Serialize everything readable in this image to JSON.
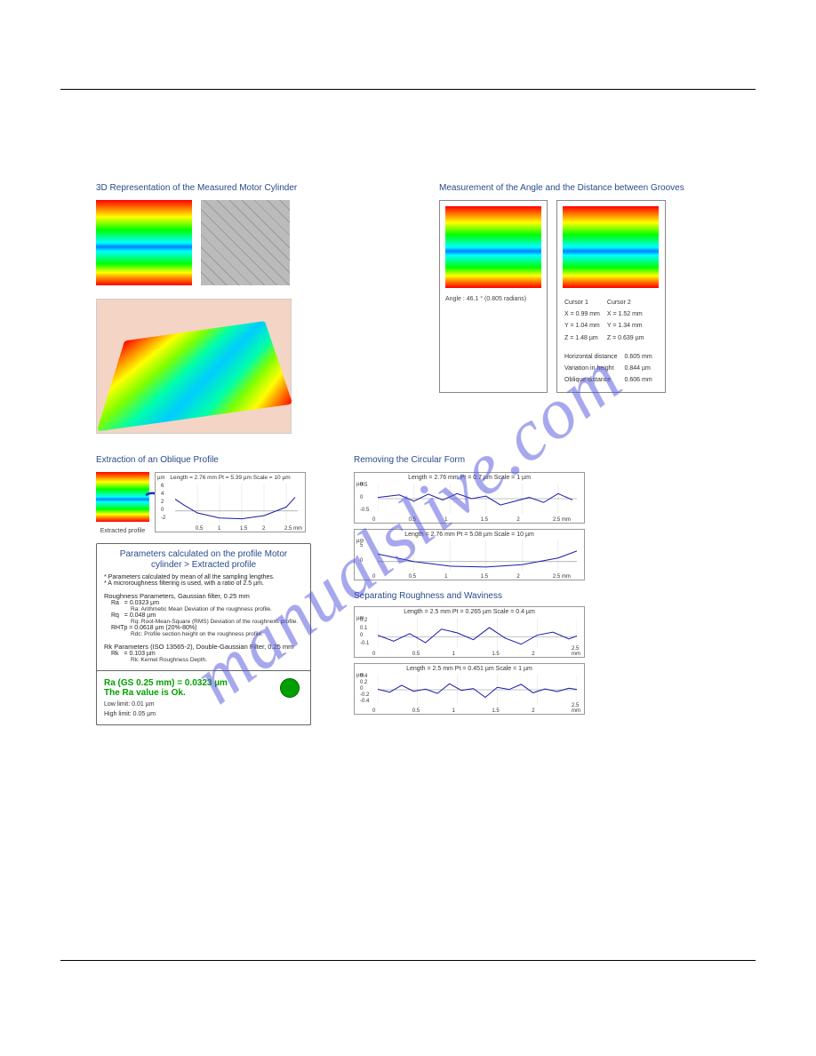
{
  "watermark": "manualslive.com",
  "sections": {
    "s3d_title": "3D Representation of the Measured Motor Cylinder",
    "groove_title": "Measurement of the Angle and the Distance between Grooves",
    "extract_title": "Extraction of an Oblique Profile",
    "remove_title": "Removing the Circular Form",
    "separate_title": "Separating Roughness and Waviness"
  },
  "groove": {
    "angle_caption": "Angle : 46.1 ° (0.805 radians)",
    "c1_label": "Cursor 1",
    "c2_label": "Cursor 2",
    "c1_x": "X = 0.99 mm",
    "c2_x": "X = 1.52 mm",
    "c1_y": "Y = 1.04 mm",
    "c2_y": "Y = 1.34 mm",
    "c1_z": "Z = 1.48 µm",
    "c2_z": "Z = 0.639 µm",
    "hd_label": "Horizontal distance",
    "hd_val": "0.605 mm",
    "vh_label": "Variation in height",
    "vh_val": "0.844 µm",
    "od_label": "Oblique distance",
    "od_val": "0.606 mm"
  },
  "profile": {
    "extract_label": "Extracted profile",
    "chart_title": "Length = 2.76 mm  Pt = 5.39 µm  Scale = 10 µm",
    "y_unit": "µm",
    "x_unit": "mm",
    "yticks": [
      "6",
      "4",
      "2",
      "0",
      "-2"
    ],
    "xticks": [
      "0.5",
      "1",
      "1.5",
      "2",
      "2.5 mm"
    ],
    "curve": [
      [
        0,
        3
      ],
      [
        0.2,
        1.5
      ],
      [
        0.5,
        -0.5
      ],
      [
        1,
        -1.8
      ],
      [
        1.5,
        -2
      ],
      [
        2,
        -1.2
      ],
      [
        2.5,
        1
      ],
      [
        2.7,
        3.5
      ]
    ],
    "ylim": [
      -3,
      7
    ],
    "xlim": [
      0,
      2.76
    ],
    "line_color": "#1a1aaa"
  },
  "params": {
    "box_title": "Parameters calculated on the profile Motor cylinder > Extracted profile",
    "note1": "* Parameters calculated by mean of all the sampling lengthes.",
    "note2": "* A microroughness filtering is used, with a ratio of 2.5 µm.",
    "sect1": "Roughness Parameters, Gaussian filter, 0.25 mm",
    "ra_lab": "Ra",
    "ra_val": "= 0.0323 µm",
    "ra_def": "Ra: Arithmetic Mean Deviation of the roughness profile.",
    "rq_lab": "Rq",
    "rq_val": "= 0.048 µm",
    "rq_def": "Rq: Root-Mean-Square (RMS) Deviation of the roughness profile.",
    "rhtp_lab": "RHTp",
    "rhtp_val": "= 0.0618 µm    (20%-80%)",
    "rdc_def": "Rdc: Profile section height on the roughness profile.",
    "sect2": "Rk Parameters (ISO 13565-2), Double-Gaussian Filter, 0.25 mm",
    "rk_lab": "Rk",
    "rk_val": "= 0.103 µm",
    "rk_def": "Rk: Kernel Roughness Depth.",
    "result_line1": "Ra (GS 0.25 mm) = 0.0323 µm",
    "result_line2": "The Ra value is Ok.",
    "low_limit": "Low limit: 0.01 µm",
    "high_limit": "High limit: 0.05 µm"
  },
  "remove_charts": [
    {
      "title": "Length = 2.76 mm  Pt = 0.7 µm  Scale = 1 µm",
      "ylim": [
        -0.6,
        0.6
      ],
      "yticks": [
        "0.5",
        "0",
        "-0.5"
      ],
      "xlim": [
        0,
        2.76
      ],
      "xticks": [
        "0",
        "0.5",
        "1",
        "1.5",
        "2",
        "2.5 mm"
      ],
      "line_color": "#1a1aaa",
      "curve": [
        [
          0,
          0.05
        ],
        [
          0.3,
          0.15
        ],
        [
          0.5,
          -0.1
        ],
        [
          0.7,
          0.18
        ],
        [
          0.9,
          -0.05
        ],
        [
          1.1,
          0.2
        ],
        [
          1.3,
          0
        ],
        [
          1.5,
          0.1
        ],
        [
          1.7,
          -0.25
        ],
        [
          1.9,
          -0.1
        ],
        [
          2.1,
          0.05
        ],
        [
          2.3,
          -0.15
        ],
        [
          2.5,
          0.2
        ],
        [
          2.7,
          -0.05
        ]
      ]
    },
    {
      "title": "Length = 2.76 mm  Pt = 5.08 µm  Scale = 10 µm",
      "ylim": [
        -3,
        7
      ],
      "yticks": [
        "5",
        "0"
      ],
      "xlim": [
        0,
        2.76
      ],
      "xticks": [
        "0",
        "0.5",
        "1",
        "1.5",
        "2",
        "2.5 mm"
      ],
      "line_color": "#1a1aaa",
      "curve": [
        [
          0,
          2.5
        ],
        [
          0.5,
          0
        ],
        [
          1,
          -1.5
        ],
        [
          1.5,
          -1.8
        ],
        [
          2,
          -1
        ],
        [
          2.5,
          1.2
        ],
        [
          2.76,
          3.5
        ]
      ]
    }
  ],
  "separate_charts": [
    {
      "title": "Length = 2.5 mm  Pt = 0.265 µm  Scale = 0.4 µm",
      "ylim": [
        -0.15,
        0.25
      ],
      "yticks": [
        "0.2",
        "0.1",
        "0",
        "-0.1"
      ],
      "xlim": [
        0,
        2.5
      ],
      "xticks": [
        "0",
        "0.5",
        "1",
        "1.5",
        "2",
        "2.5 mm"
      ],
      "line_color": "#1a1aaa",
      "curve": [
        [
          0,
          0.02
        ],
        [
          0.2,
          -0.06
        ],
        [
          0.4,
          0.04
        ],
        [
          0.6,
          -0.08
        ],
        [
          0.8,
          0.1
        ],
        [
          1.0,
          0.05
        ],
        [
          1.2,
          -0.04
        ],
        [
          1.4,
          0.12
        ],
        [
          1.6,
          -0.02
        ],
        [
          1.8,
          -0.1
        ],
        [
          2.0,
          0.02
        ],
        [
          2.2,
          0.06
        ],
        [
          2.4,
          -0.03
        ],
        [
          2.5,
          0.01
        ]
      ]
    },
    {
      "title": "Length = 2.5 mm  Pt = 0.451 µm  Scale = 1 µm",
      "ylim": [
        -0.5,
        0.5
      ],
      "yticks": [
        "0.4",
        "0.2",
        "0",
        "-0.2",
        "-0.4"
      ],
      "xlim": [
        0,
        2.5
      ],
      "xticks": [
        "0",
        "0.5",
        "1",
        "1.5",
        "2",
        "2.5 mm"
      ],
      "line_color": "#1a1aaa",
      "curve": [
        [
          0,
          0.02
        ],
        [
          0.15,
          -0.08
        ],
        [
          0.3,
          0.15
        ],
        [
          0.45,
          -0.05
        ],
        [
          0.6,
          0.02
        ],
        [
          0.75,
          -0.12
        ],
        [
          0.9,
          0.2
        ],
        [
          1.05,
          -0.02
        ],
        [
          1.2,
          0.04
        ],
        [
          1.35,
          -0.25
        ],
        [
          1.5,
          0.08
        ],
        [
          1.65,
          0.01
        ],
        [
          1.8,
          0.18
        ],
        [
          1.95,
          -0.1
        ],
        [
          2.1,
          0.03
        ],
        [
          2.25,
          -0.06
        ],
        [
          2.4,
          0.05
        ],
        [
          2.5,
          0.01
        ]
      ]
    }
  ],
  "colors": {
    "accent": "#2a4a8a",
    "ok_green": "#00a000",
    "plot_line": "#1a1aaa",
    "grid": "#cccccc"
  }
}
